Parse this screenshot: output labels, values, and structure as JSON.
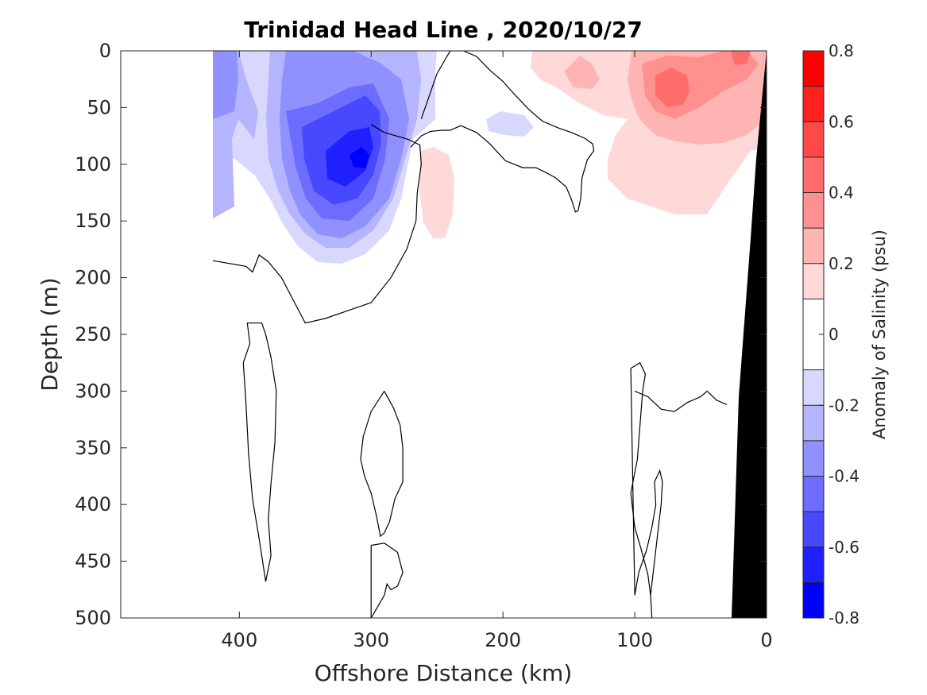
{
  "chart_data": {
    "type": "filled-contour",
    "title": "Trinidad Head Line , 2020/10/27",
    "xlabel": "Offshore Distance (km)",
    "ylabel": "Depth (m)",
    "xlim": [
      490,
      0
    ],
    "ylim": [
      0,
      500
    ],
    "x_reversed": true,
    "y_reversed": true,
    "x_ticks": [
      "400",
      "300",
      "200",
      "100",
      "0"
    ],
    "x_tick_values": [
      400,
      300,
      200,
      100,
      0
    ],
    "y_ticks": [
      "0",
      "50",
      "100",
      "150",
      "200",
      "250",
      "300",
      "350",
      "400",
      "450",
      "500"
    ],
    "y_tick_values": [
      0,
      50,
      100,
      150,
      200,
      250,
      300,
      350,
      400,
      450,
      500
    ],
    "colorbar": {
      "label": "Anomaly of Salinity (psu)",
      "range": [
        -0.8,
        0.8
      ],
      "tick_labels": [
        "0.8",
        "0.6",
        "0.4",
        "0.2",
        "0",
        "-0.2",
        "-0.4",
        "-0.6",
        "-0.8"
      ],
      "tick_values": [
        0.8,
        0.6,
        0.4,
        0.2,
        0,
        -0.2,
        -0.4,
        -0.6,
        -0.8
      ],
      "levels": [
        -0.8,
        -0.7,
        -0.6,
        -0.5,
        -0.4,
        -0.3,
        -0.2,
        -0.1,
        0.1,
        0.2,
        0.3,
        0.4,
        0.5,
        0.6,
        0.7,
        0.8
      ],
      "colors": [
        "#0000ff",
        "#2020ff",
        "#4848ff",
        "#6c6cff",
        "#9090ff",
        "#b4b4ff",
        "#d8d8ff",
        "#ffffff",
        "#ffd8d8",
        "#ffb4b4",
        "#ff9090",
        "#ff6c6c",
        "#ff4848",
        "#ff2020",
        "#ff0000"
      ]
    },
    "anomalies": [
      {
        "description": "fresh core offshore",
        "center_km": 305,
        "center_depth_m": 95,
        "min_value": -0.7
      },
      {
        "description": "salty anomaly nearshore",
        "center_km": 75,
        "center_depth_m": 35,
        "max_value": 0.4
      }
    ],
    "zero_contours": [
      {
        "x": [
          420,
          395,
          390,
          385,
          378,
          368,
          350,
          335,
          320,
          300,
          285,
          273,
          266,
          265,
          262,
          263,
          272,
          290,
          300
        ],
        "y": [
          185,
          190,
          195,
          180,
          186,
          200,
          240,
          236,
          230,
          222,
          200,
          175,
          150,
          125,
          100,
          83,
          78,
          72,
          65
        ]
      },
      {
        "x": [
          270,
          262,
          255,
          246,
          240,
          232,
          220,
          210,
          198,
          185,
          175,
          168,
          160,
          152,
          148,
          145,
          143,
          141,
          140,
          136,
          131,
          132,
          138,
          148,
          158,
          170,
          180,
          190,
          200,
          210,
          220,
          230,
          240,
          250,
          262
        ],
        "y": [
          85,
          75,
          71,
          70,
          70,
          66,
          72,
          82,
          97,
          103,
          103,
          107,
          112,
          120,
          131,
          142,
          141,
          130,
          112,
          96,
          88,
          82,
          77,
          72,
          68,
          62,
          52,
          40,
          27,
          17,
          5,
          0,
          0,
          20,
          60
        ]
      },
      {
        "x": [
          385,
          394,
          392,
          397,
          395,
          393,
          390,
          385,
          380,
          376,
          378,
          376,
          373,
          372,
          376,
          380,
          383,
          385
        ],
        "y": [
          240,
          240,
          258,
          275,
          310,
          355,
          395,
          430,
          468,
          445,
          413,
          382,
          345,
          300,
          270,
          250,
          240,
          240
        ]
      },
      {
        "x": [
          290,
          300,
          306,
          308,
          305,
          300,
          296,
          293,
          290,
          286,
          282,
          276,
          276,
          278,
          283,
          290
        ],
        "y": [
          300,
          318,
          340,
          360,
          375,
          390,
          410,
          428,
          425,
          415,
          395,
          380,
          350,
          330,
          315,
          300
        ]
      },
      {
        "x": [
          300,
          290,
          280,
          276,
          280,
          285,
          288,
          290,
          296,
          300,
          300
        ],
        "y": [
          436,
          434,
          442,
          460,
          472,
          475,
          470,
          480,
          492,
          500,
          436
        ]
      },
      {
        "x": [
          103,
          96,
          92,
          94,
          96,
          98,
          103,
          100,
          95,
          90,
          88,
          87,
          88,
          86,
          84,
          82,
          80,
          79,
          81,
          85,
          84,
          87,
          91,
          97,
          100,
          103
        ],
        "y": [
          280,
          275,
          285,
          300,
          330,
          360,
          390,
          420,
          440,
          462,
          480,
          500,
          480,
          460,
          440,
          420,
          400,
          380,
          370,
          380,
          400,
          420,
          440,
          460,
          480,
          280
        ]
      },
      {
        "x": [
          100,
          90,
          80,
          70,
          60,
          50,
          45,
          38,
          30
        ],
        "y": [
          300,
          305,
          316,
          318,
          310,
          305,
          300,
          308,
          312
        ]
      }
    ],
    "bottom_mask": {
      "description": "continental slope (black)",
      "x": [
        0,
        0,
        22,
        25
      ],
      "y": [
        0,
        500,
        500,
        380
      ]
    }
  }
}
